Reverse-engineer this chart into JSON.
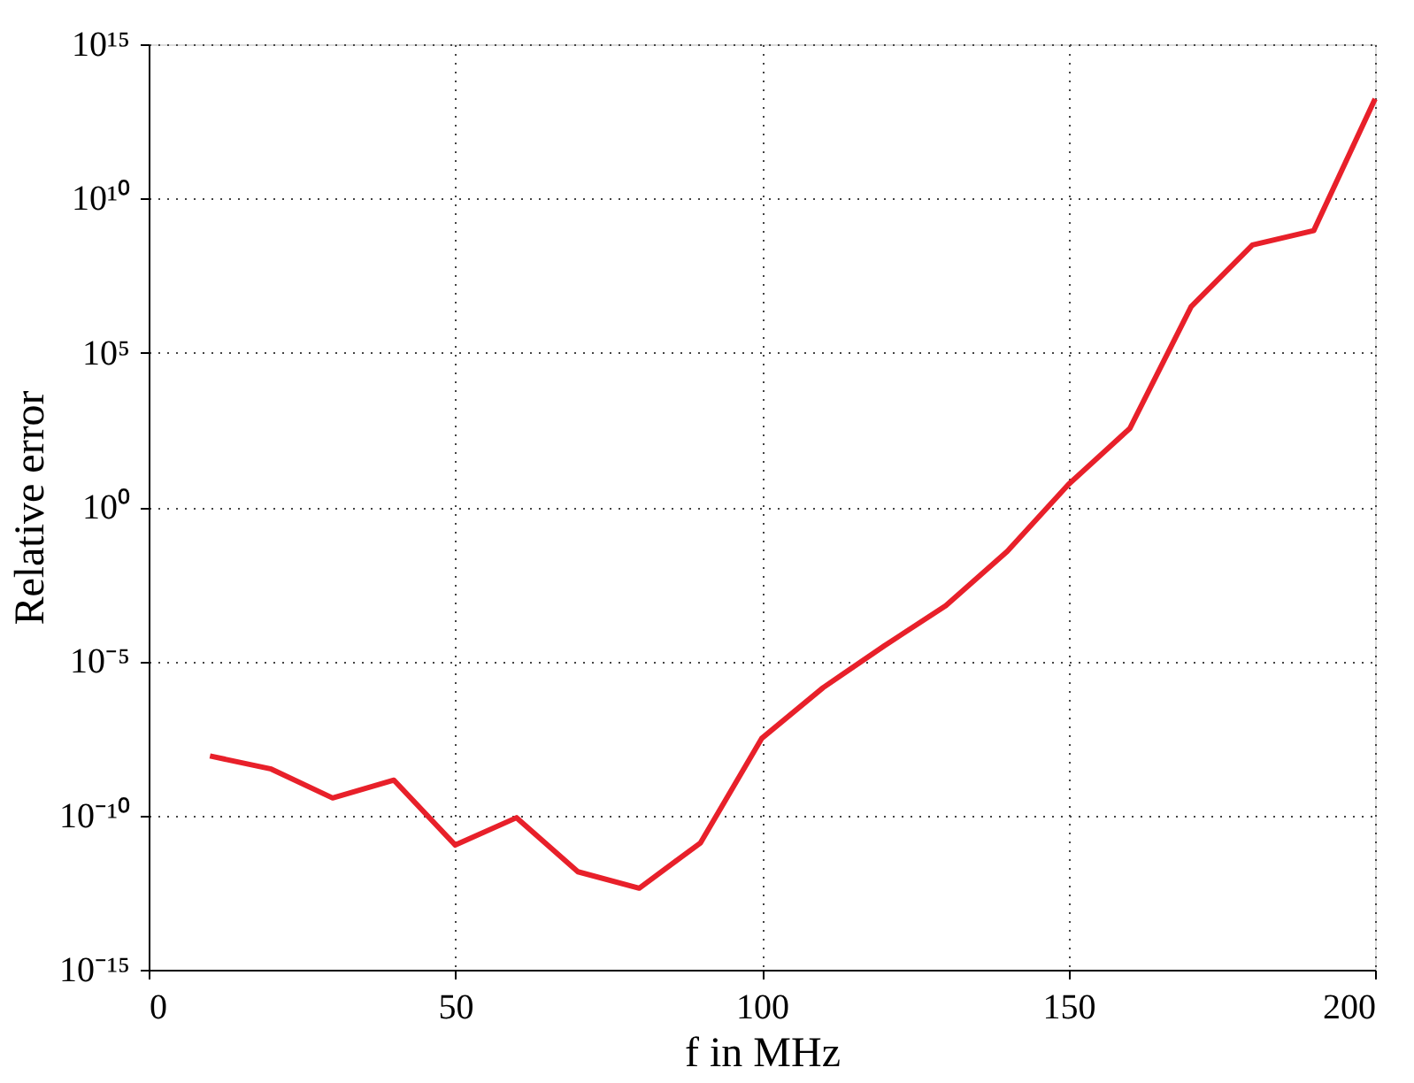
{
  "chart_data": {
    "type": "line",
    "xlabel": "f in MHz",
    "ylabel": "Relative error",
    "log": "y",
    "grid": true,
    "marker": "none",
    "line_style": "solid",
    "x": [
      10,
      20,
      30,
      40,
      50,
      60,
      70,
      80,
      90,
      100,
      110,
      120,
      130,
      140,
      150,
      160,
      170,
      180,
      190,
      200
    ],
    "series": [
      {
        "color": "#e8202a",
        "values": [
          8.5e-09,
          3.2e-09,
          3.7e-10,
          1.4e-09,
          1.1e-11,
          8.5e-11,
          1.5e-12,
          4.4e-13,
          1.3e-11,
          3.2e-08,
          1.4e-06,
          3.2e-05,
          0.00063,
          0.036,
          5.4,
          350.0,
          3100000.0,
          310000000.0,
          910000000.0,
          17000000000000.0
        ]
      }
    ],
    "xlim": [
      0,
      200
    ],
    "xticks": [
      0,
      50,
      100,
      150,
      200
    ],
    "ylim": [
      1e-15,
      1000000000000000.0
    ],
    "yticks": [
      {
        "value": 1e-15,
        "label": "10⁻¹⁵"
      },
      {
        "value": 1e-10,
        "label": "10⁻¹⁰"
      },
      {
        "value": 1e-05,
        "label": "10⁻⁵"
      },
      {
        "value": 1,
        "label": "10⁰"
      },
      {
        "value": 100000.0,
        "label": "10⁵"
      },
      {
        "value": 10000000000.0,
        "label": "10¹⁰"
      },
      {
        "value": 1000000000000000.0,
        "label": "10¹⁵"
      }
    ]
  }
}
